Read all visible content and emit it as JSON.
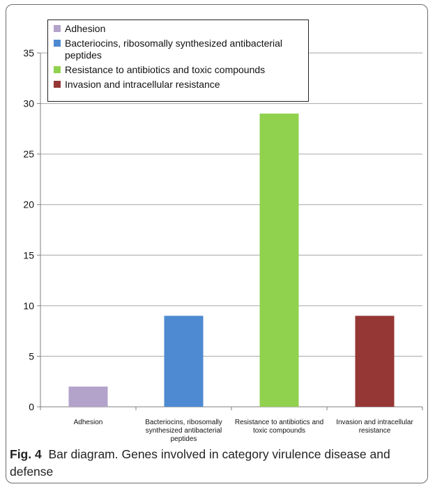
{
  "chart_data": {
    "type": "bar",
    "categories": [
      "Adhesion",
      "Bacteriocins, ribosomally synthesized antibacterial peptides",
      "Resistance to antibiotics and toxic compounds",
      "Invasion and intracellular resistance"
    ],
    "x_tick_lines": [
      [
        "Adhesion"
      ],
      [
        "Bacteriocins, ribosomally",
        "synthesized antibacterial",
        "peptides"
      ],
      [
        "Resistance to antibiotics and",
        "toxic compounds"
      ],
      [
        "Invasion and intracellular",
        "resistance"
      ]
    ],
    "values": [
      2,
      9,
      29,
      9
    ],
    "colors": [
      "#b3a2c9",
      "#4e8ad2",
      "#90d14e",
      "#953735"
    ],
    "ylim": [
      0,
      35
    ],
    "yticks": [
      0,
      5,
      10,
      15,
      20,
      25,
      30,
      35
    ],
    "grid": true,
    "legend": {
      "position": "top-left",
      "entries": [
        "Adhesion",
        "Bacteriocins, ribosomally synthesized antibacterial peptides",
        "Resistance to antibiotics and toxic compounds",
        "Invasion and intracellular resistance"
      ]
    }
  },
  "caption": {
    "label": "Fig. 4",
    "text": "Bar diagram. Genes involved in category virulence disease and defense"
  }
}
